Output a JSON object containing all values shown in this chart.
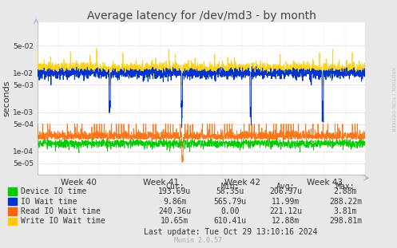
{
  "title": "Average latency for /dev/md3 - by month",
  "ylabel": "seconds",
  "background_color": "#e8e8e8",
  "plot_bg_color": "#ffffff",
  "grid_color_major": "#ddbbbb",
  "grid_color_minor": "#eedddd",
  "ylim": [
    2.5e-05,
    0.2
  ],
  "x_weeks": [
    "Week 40",
    "Week 41",
    "Week 42",
    "Week 43"
  ],
  "legend_entries": [
    {
      "label": "Device IO time",
      "color": "#00cc00"
    },
    {
      "label": "IO Wait time",
      "color": "#0033cc"
    },
    {
      "label": "Read IO Wait time",
      "color": "#ff6600"
    },
    {
      "label": "Write IO Wait time",
      "color": "#ffcc00"
    }
  ],
  "legend_stats": {
    "headers": [
      "Cur:",
      "Min:",
      "Avg:",
      "Max:"
    ],
    "rows": [
      [
        "193.69u",
        "58.35u",
        "206.97u",
        "2.88m"
      ],
      [
        "9.86m",
        "565.79u",
        "11.99m",
        "288.22m"
      ],
      [
        "240.36u",
        "0.00",
        "221.12u",
        "3.81m"
      ],
      [
        "10.65m",
        "610.41u",
        "12.88m",
        "298.81m"
      ]
    ]
  },
  "last_update": "Last update: Tue Oct 29 13:10:16 2024",
  "munin_version": "Munin 2.0.57",
  "rrdtool_label": "RRDTOOL / TOBI OETIKER"
}
